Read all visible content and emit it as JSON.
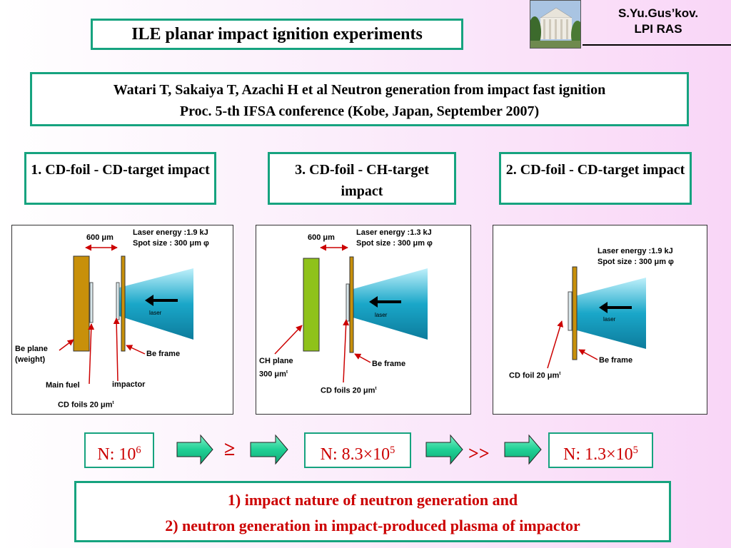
{
  "title": "ILE planar impact ignition experiments",
  "author": {
    "line1": "S.Yu.Gus’kov.",
    "line2": "LPI RAS"
  },
  "reference": {
    "line1": "Watari T, Sakaiya T, Azachi H et al Neutron generation from impact fast ignition",
    "line2": "Proc. 5-th IFSA conference (Kobe, Japan, September 2007)"
  },
  "experiments": [
    {
      "heading": "1. CD-foil - CD-target impact",
      "gap": "600 μm",
      "laser_info": [
        "Laser energy :1.9 kJ",
        "Spot size : 300 μm φ"
      ],
      "laser_label": "laser",
      "labels": {
        "plane": [
          "Be plane",
          "(weight)"
        ],
        "frame": "Be frame",
        "fuel": "Main fuel",
        "impactor": "impactor",
        "foils": "CD foils 20 μm",
        "foils_sup": "t"
      },
      "neutrons": {
        "base": "N: 10",
        "exp": "6"
      }
    },
    {
      "heading": "3. CD-foil - CH-target impact",
      "gap": "600 μm",
      "laser_info": [
        "Laser energy :1.3 kJ",
        "Spot size : 300 μm φ"
      ],
      "laser_label": "laser",
      "labels": {
        "plane": [
          "CH plane",
          "300 μm"
        ],
        "plane_sup": "t",
        "frame": "Be frame",
        "foils": "CD foils 20 μm",
        "foils_sup": "t"
      },
      "neutrons": {
        "base": "N: 8.3×10",
        "exp": "5"
      }
    },
    {
      "heading": "2. CD-foil - CD-target impact",
      "laser_info": [
        "Laser energy :1.9 kJ",
        "Spot size : 300 μm φ"
      ],
      "laser_label": "laser",
      "labels": {
        "frame": "Be frame",
        "foils": "CD foil 20 μm",
        "foils_sup": "t"
      },
      "neutrons": {
        "base": "N: 1.3×10",
        "exp": "5"
      }
    }
  ],
  "relations": [
    "≥",
    ">>"
  ],
  "conclusions": [
    "1) impact nature of neutron generation and",
    "2) neutron generation in impact-produced plasma of impactor"
  ],
  "colors": {
    "accent_border": "#16a37f",
    "emphasis": "#cc0000",
    "laser": "#1aa7c9",
    "be": "#c8900a",
    "ch": "#8fc21a",
    "arrow": "#1fd095"
  }
}
